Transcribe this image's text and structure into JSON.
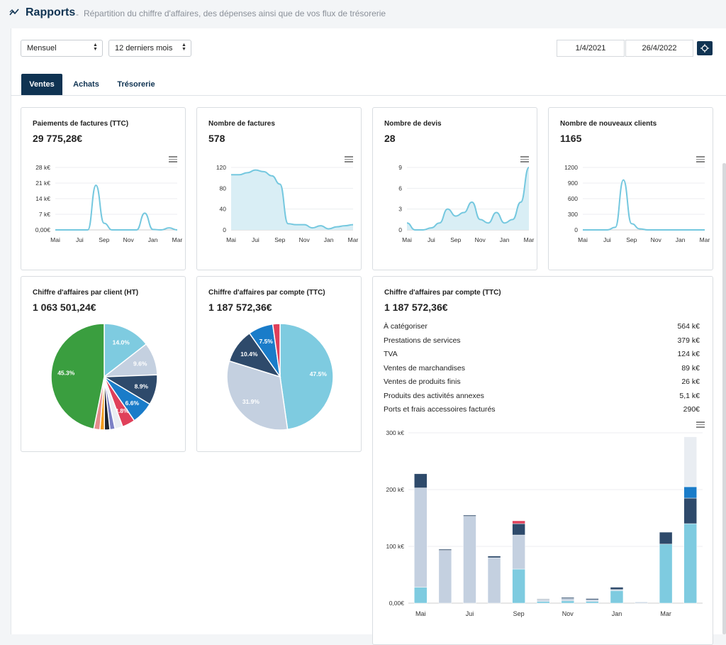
{
  "header": {
    "title": "Rapports",
    "separator": "-",
    "subtitle": "Répartition du chiffre d'affaires, des dépenses ainsi que de vos flux de trésorerie"
  },
  "filters": {
    "period": "Mensuel",
    "range": "12 derniers mois",
    "date_from": "1/4/2021",
    "date_to": "26/4/2022"
  },
  "tabs": [
    {
      "label": "Ventes",
      "active": true
    },
    {
      "label": "Achats",
      "active": false
    },
    {
      "label": "Trésorerie",
      "active": false
    }
  ],
  "cards": {
    "payments": {
      "title": "Paiements de factures (TTC)",
      "value": "29 775,28€"
    },
    "invoices": {
      "title": "Nombre de factures",
      "value": "578"
    },
    "quotes": {
      "title": "Nombre de devis",
      "value": "28"
    },
    "clients": {
      "title": "Nombre de nouveaux clients",
      "value": "1165"
    },
    "by_client": {
      "title": "Chiffre d'affaires par client (HT)",
      "value": "1 063 501,24€"
    },
    "by_account": {
      "title": "Chiffre d'affaires par compte (TTC)",
      "value": "1 187 572,36€"
    },
    "by_account_detail": {
      "title": "Chiffre d'affaires par compte (TTC)",
      "value": "1 187 572,36€"
    }
  },
  "account_rows": [
    {
      "label": "À catégoriser",
      "value": "564 k€"
    },
    {
      "label": "Prestations de services",
      "value": "379 k€"
    },
    {
      "label": "TVA",
      "value": "124 k€"
    },
    {
      "label": "Ventes de marchandises",
      "value": "89 k€"
    },
    {
      "label": "Ventes de produits finis",
      "value": "26 k€"
    },
    {
      "label": "Produits des activités annexes",
      "value": "5,1 k€"
    },
    {
      "label": "Ports et frais accessoires facturés",
      "value": "290€"
    }
  ],
  "colors": {
    "navy": "#0f3352",
    "line": "#75c8df",
    "area": "#d9eef5",
    "green": "#3a9e3f"
  },
  "chart_data": [
    {
      "type": "line",
      "title": "Paiements de factures (TTC)",
      "x_ticks": [
        "Mai",
        "Jui",
        "Sep",
        "Nov",
        "Jan",
        "Mar"
      ],
      "y_ticks": [
        "0,00€",
        "7 k€",
        "14 k€",
        "21 k€",
        "28 k€"
      ],
      "ylim": [
        0,
        28000
      ],
      "fill": false,
      "series": [
        {
          "values": [
            0,
            0,
            0,
            0,
            0,
            20000,
            3000,
            0,
            0,
            0,
            0,
            7500,
            200,
            0,
            900,
            0
          ]
        }
      ]
    },
    {
      "type": "area",
      "title": "Nombre de factures",
      "x_ticks": [
        "Mai",
        "Jui",
        "Sep",
        "Nov",
        "Jan",
        "Mar"
      ],
      "y_ticks": [
        "0",
        "40",
        "80",
        "120"
      ],
      "ylim": [
        0,
        120
      ],
      "fill": true,
      "series": [
        {
          "values": [
            106,
            106,
            110,
            115,
            112,
            104,
            88,
            12,
            10,
            10,
            4,
            8,
            2,
            6,
            8,
            10
          ]
        }
      ]
    },
    {
      "type": "area",
      "title": "Nombre de devis",
      "x_ticks": [
        "Mai",
        "Jui",
        "Sep",
        "Nov",
        "Jan",
        "Mar"
      ],
      "y_ticks": [
        "0",
        "3",
        "6",
        "9"
      ],
      "ylim": [
        0,
        9
      ],
      "fill": true,
      "series": [
        {
          "values": [
            1,
            0,
            0,
            0.3,
            1,
            3,
            2,
            2.5,
            4,
            1.5,
            1,
            2.5,
            1,
            1.5,
            4,
            9
          ]
        }
      ]
    },
    {
      "type": "line",
      "title": "Nombre de nouveaux clients",
      "x_ticks": [
        "Mai",
        "Jui",
        "Sep",
        "Nov",
        "Jan",
        "Mar"
      ],
      "y_ticks": [
        "0",
        "300",
        "600",
        "900",
        "1200"
      ],
      "ylim": [
        0,
        1200
      ],
      "fill": false,
      "series": [
        {
          "values": [
            0,
            0,
            0,
            0,
            50,
            960,
            120,
            20,
            0,
            0,
            0,
            0,
            0,
            0,
            0,
            0
          ]
        }
      ]
    },
    {
      "type": "pie",
      "title": "Chiffre d'affaires par client (HT)",
      "slices": [
        {
          "label": "14.0%",
          "value": 14.0,
          "color": "#7ecbe0"
        },
        {
          "label": "9.6%",
          "value": 9.6,
          "color": "#c4d0e0"
        },
        {
          "label": "8.9%",
          "value": 8.9,
          "color": "#2e4a6b"
        },
        {
          "label": "6.6%",
          "value": 6.6,
          "color": "#1a7cc9"
        },
        {
          "label": "3.8%",
          "value": 3.8,
          "color": "#e0405a"
        },
        {
          "label": "",
          "value": 2.3,
          "color": "#e9edf2"
        },
        {
          "label": "",
          "value": 1.5,
          "color": "#7b80c6"
        },
        {
          "label": "",
          "value": 1.6,
          "color": "#1e2430"
        },
        {
          "label": "",
          "value": 1.3,
          "color": "#f39a1b"
        },
        {
          "label": "",
          "value": 1.8,
          "color": "#e58c8c"
        },
        {
          "label": "45.3%",
          "value": 45.3,
          "color": "#3a9e3f"
        }
      ]
    },
    {
      "type": "pie",
      "title": "Chiffre d'affaires par compte (TTC)",
      "slices": [
        {
          "label": "47.5%",
          "value": 47.5,
          "color": "#7ecbe0"
        },
        {
          "label": "31.9%",
          "value": 31.9,
          "color": "#c4d0e0"
        },
        {
          "label": "10.4%",
          "value": 10.4,
          "color": "#2e4a6b"
        },
        {
          "label": "7.5%",
          "value": 7.5,
          "color": "#1a7cc9"
        },
        {
          "label": "",
          "value": 2.2,
          "color": "#e0405a"
        }
      ]
    },
    {
      "type": "bar",
      "title": "Chiffre d'affaires par compte (TTC)",
      "stacked": true,
      "x_ticks": [
        "Mai",
        "Jui",
        "Sep",
        "Nov",
        "Jan",
        "Mar"
      ],
      "y_ticks": [
        "0,00€",
        "100 k€",
        "200 k€",
        "300 k€"
      ],
      "ylim": [
        0,
        300
      ],
      "series_colors": [
        "#7ecbe0",
        "#c4d0e0",
        "#2e4a6b",
        "#1a7cc9",
        "#e0405a",
        "#e9edf2"
      ],
      "stacks": [
        [
          28,
          175,
          25,
          0,
          0,
          0
        ],
        [
          0,
          93,
          2,
          0,
          0,
          0
        ],
        [
          0,
          153,
          2,
          0,
          0,
          0
        ],
        [
          0,
          80,
          3,
          0,
          0,
          0
        ],
        [
          60,
          60,
          20,
          0,
          5,
          0
        ],
        [
          3,
          3,
          1,
          0,
          0,
          0
        ],
        [
          4,
          4,
          2,
          0,
          0,
          0
        ],
        [
          3,
          3,
          2,
          0,
          0,
          0
        ],
        [
          22,
          2,
          4,
          0,
          0,
          0
        ],
        [
          0,
          2,
          0,
          0,
          0,
          0
        ],
        [
          104,
          0,
          21,
          0,
          0,
          0
        ],
        [
          140,
          0,
          45,
          20,
          0,
          88
        ]
      ]
    }
  ]
}
